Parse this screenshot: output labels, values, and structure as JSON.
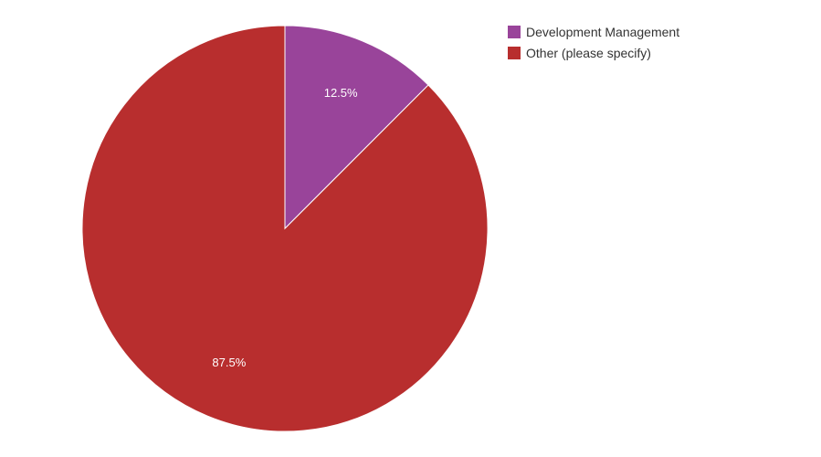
{
  "chart_data": {
    "type": "pie",
    "categories": [
      "Development Management",
      "Other (please specify)"
    ],
    "values": [
      12.5,
      87.5
    ],
    "data_labels": [
      "12.5%",
      "87.5%"
    ],
    "colors": [
      "#99449a",
      "#b82e2e"
    ],
    "start_angle_deg": 0,
    "direction": "clockwise",
    "legend_position": "top-right",
    "slice_border_color": "#ffffff"
  }
}
